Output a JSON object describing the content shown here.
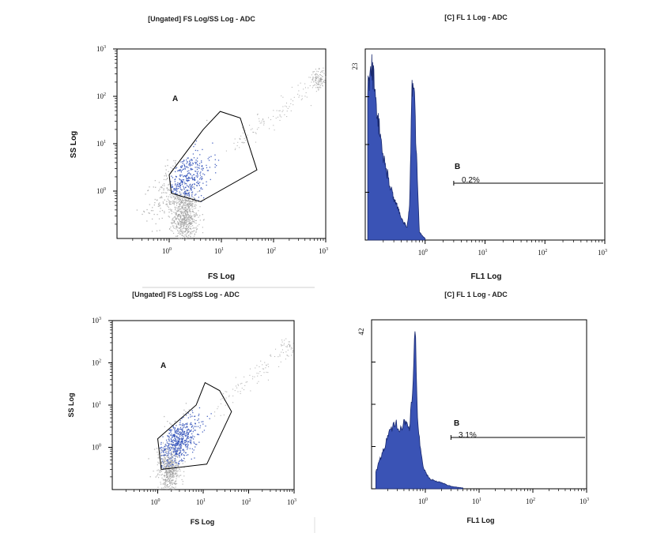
{
  "chart_data": [
    {
      "type": "scatter",
      "title": "[Ungated] FS Log/SS Log - ADC",
      "xlabel": "FS Log",
      "ylabel": "SS Log",
      "x_scale": "log",
      "y_scale": "log",
      "xlim": [
        0.1,
        1000
      ],
      "ylim": [
        0.1,
        1000
      ],
      "x_ticks": [
        "1",
        "10",
        "100",
        "1000"
      ],
      "y_ticks": [
        "1",
        "10",
        "100",
        "1000"
      ],
      "gate_label": "A",
      "gate_polygon": [
        [
          1,
          2.2
        ],
        [
          4.5,
          20
        ],
        [
          9.5,
          48
        ],
        [
          23,
          35
        ],
        [
          48,
          2.8
        ],
        [
          4,
          0.6
        ],
        [
          1.1,
          0.9
        ]
      ],
      "colors": {
        "gated": "#2f4fb8",
        "ungated": "#9a9a9a"
      }
    },
    {
      "type": "area",
      "title": "[C] FL 1 Log - ADC",
      "xlabel": "FL1 Log",
      "ylabel": "",
      "x_scale": "log",
      "xlim": [
        0.1,
        1000
      ],
      "ylim": [
        0,
        23
      ],
      "y_max_label": "23",
      "x_ticks": [
        "1",
        "10",
        "100",
        "1000"
      ],
      "x": [
        0.11,
        0.13,
        0.16,
        0.2,
        0.25,
        0.3,
        0.35,
        0.4,
        0.45,
        0.5,
        0.55,
        0.6,
        0.65,
        0.7,
        0.8,
        0.9,
        1.0
      ],
      "values": [
        18,
        21,
        15,
        10,
        7,
        5,
        4,
        2.5,
        2,
        1.5,
        4,
        18,
        20,
        12,
        1,
        0.5,
        0.2
      ],
      "marker_label": "B",
      "marker_value": "0.2%",
      "marker_range": [
        3,
        1000
      ],
      "colors": {
        "fill": "#3a53b5",
        "outline": "#1a2a70"
      }
    },
    {
      "type": "scatter",
      "title": "[Ungated] FS Log/SS Log - ADC",
      "xlabel": "FS Log",
      "ylabel": "SS Log",
      "x_scale": "log",
      "y_scale": "log",
      "xlim": [
        0.1,
        1000
      ],
      "ylim": [
        0.1,
        1000
      ],
      "x_ticks": [
        "1",
        "10",
        "100",
        "1000"
      ],
      "y_ticks": [
        "1",
        "10",
        "100",
        "1000"
      ],
      "gate_label": "A",
      "gate_polygon": [
        [
          1,
          1.6
        ],
        [
          7,
          10
        ],
        [
          11,
          34
        ],
        [
          23,
          22
        ],
        [
          42,
          7
        ],
        [
          12,
          0.4
        ],
        [
          1.2,
          0.3
        ]
      ],
      "colors": {
        "gated": "#2f4fb8",
        "ungated": "#9a9a9a"
      }
    },
    {
      "type": "area",
      "title": "[C] FL 1 Log - ADC",
      "xlabel": "FL1 Log",
      "ylabel": "",
      "x_scale": "log",
      "xlim": [
        0.1,
        1000
      ],
      "ylim": [
        0,
        42
      ],
      "y_max_label": "42",
      "x_ticks": [
        "1",
        "10",
        "100",
        "1000"
      ],
      "x": [
        0.12,
        0.15,
        0.2,
        0.25,
        0.3,
        0.35,
        0.4,
        0.45,
        0.5,
        0.55,
        0.6,
        0.65,
        0.7,
        0.8,
        0.9,
        1.0,
        1.2,
        1.5,
        2,
        3,
        5
      ],
      "values": [
        4,
        8,
        13,
        15,
        16,
        15,
        17,
        16,
        14,
        20,
        26,
        42,
        20,
        10,
        6,
        4,
        2.5,
        2,
        1.5,
        0.6,
        0.2
      ],
      "marker_label": "B",
      "marker_value": "3.1%",
      "marker_range": [
        3,
        1000
      ],
      "colors": {
        "fill": "#3a53b5",
        "outline": "#1a2a70"
      }
    }
  ]
}
